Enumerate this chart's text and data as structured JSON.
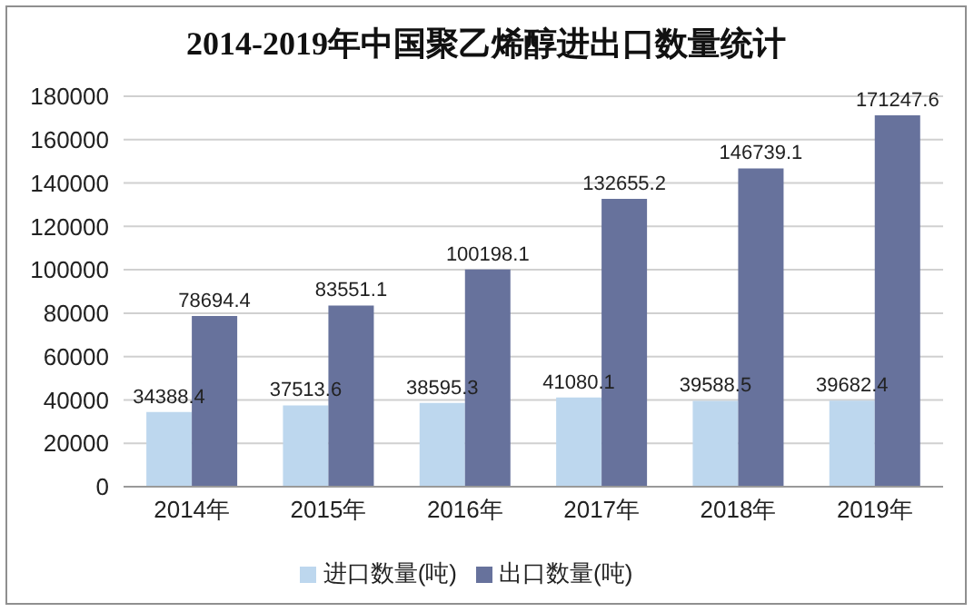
{
  "chart_data": {
    "type": "bar",
    "title": "2014-2019年中国聚乙烯醇进出口数量统计",
    "categories": [
      "2014年",
      "2015年",
      "2016年",
      "2017年",
      "2018年",
      "2019年"
    ],
    "series": [
      {
        "name": "进口数量(吨)",
        "color": "#bdd7ee",
        "values": [
          34388.4,
          37513.6,
          38595.3,
          41080.1,
          39588.5,
          39682.4
        ]
      },
      {
        "name": "出口数量(吨)",
        "color": "#67729c",
        "values": [
          78694.4,
          83551.1,
          100198.1,
          132655.2,
          146739.1,
          171247.6
        ]
      }
    ],
    "ylim": [
      0,
      180000
    ],
    "yticks": [
      0,
      20000,
      40000,
      60000,
      80000,
      100000,
      120000,
      140000,
      160000,
      180000
    ],
    "grid": "y",
    "legend": "bottom",
    "data_labels": true
  }
}
